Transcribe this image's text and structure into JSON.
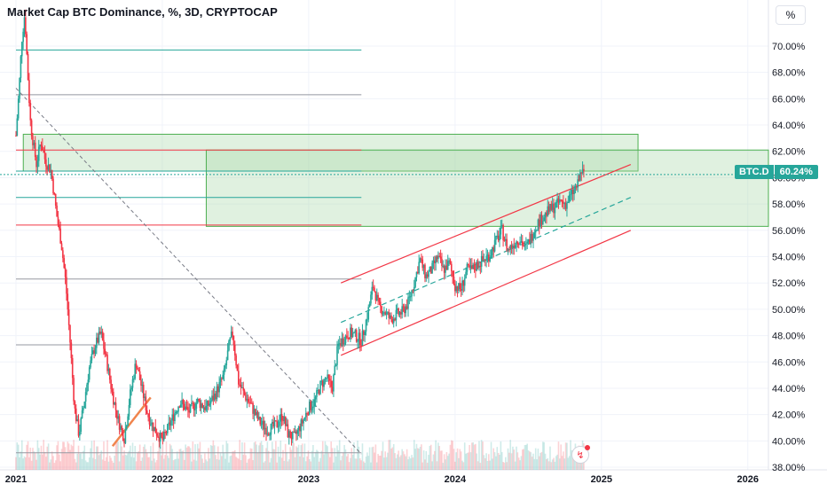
{
  "header": {
    "title": "Market Cap BTC Dominance, %, 3D, CRYPTOCAP",
    "unit_button": "%"
  },
  "price_tag": {
    "symbol": "BTC.D",
    "value": "60.24%"
  },
  "colors": {
    "up": "#26a69a",
    "down": "#f23645",
    "zone_fill": "#a5d6a7",
    "axis_text": "#131722",
    "grid": "#f0f3fa"
  },
  "chart_data": {
    "type": "candlestick",
    "x_tick_labels": [
      "2021",
      "2022",
      "2023",
      "2024",
      "2025",
      "2026"
    ],
    "x_tick_years": [
      2021,
      2022,
      2023,
      2024,
      2025,
      2026
    ],
    "xlim_years": [
      2021.0,
      2026.25
    ],
    "y_tick_labels": [
      "38.00%",
      "40.00%",
      "42.00%",
      "44.00%",
      "46.00%",
      "48.00%",
      "50.00%",
      "52.00%",
      "54.00%",
      "56.00%",
      "58.00%",
      "60.00%",
      "62.00%",
      "64.00%",
      "66.00%",
      "68.00%",
      "70.00%"
    ],
    "y_ticks": [
      38,
      40,
      42,
      44,
      46,
      48,
      50,
      52,
      54,
      56,
      58,
      60,
      62,
      64,
      66,
      68,
      70
    ],
    "ylim": [
      37.8,
      73.5
    ],
    "last_value": 60.24,
    "price_path": [
      [
        2021.0,
        63.2
      ],
      [
        2021.02,
        66.5
      ],
      [
        2021.04,
        70.5
      ],
      [
        2021.06,
        72.5
      ],
      [
        2021.08,
        68.0
      ],
      [
        2021.1,
        64.0
      ],
      [
        2021.12,
        62.5
      ],
      [
        2021.14,
        61.0
      ],
      [
        2021.17,
        62.8
      ],
      [
        2021.2,
        61.3
      ],
      [
        2021.24,
        60.5
      ],
      [
        2021.28,
        57.0
      ],
      [
        2021.31,
        55.0
      ],
      [
        2021.34,
        52.0
      ],
      [
        2021.37,
        47.5
      ],
      [
        2021.4,
        42.5
      ],
      [
        2021.43,
        40.5
      ],
      [
        2021.46,
        42.5
      ],
      [
        2021.5,
        45.5
      ],
      [
        2021.54,
        47.2
      ],
      [
        2021.58,
        48.2
      ],
      [
        2021.62,
        46.0
      ],
      [
        2021.66,
        43.5
      ],
      [
        2021.7,
        41.5
      ],
      [
        2021.74,
        40.2
      ],
      [
        2021.78,
        43.5
      ],
      [
        2021.82,
        46.0
      ],
      [
        2021.86,
        44.0
      ],
      [
        2021.9,
        42.0
      ],
      [
        2021.94,
        41.0
      ],
      [
        2022.0,
        40.0
      ],
      [
        2022.06,
        41.5
      ],
      [
        2022.12,
        43.0
      ],
      [
        2022.18,
        42.2
      ],
      [
        2022.24,
        43.0
      ],
      [
        2022.3,
        42.5
      ],
      [
        2022.36,
        43.5
      ],
      [
        2022.42,
        45.0
      ],
      [
        2022.46,
        47.5
      ],
      [
        2022.48,
        48.2
      ],
      [
        2022.52,
        44.5
      ],
      [
        2022.56,
        43.5
      ],
      [
        2022.6,
        42.8
      ],
      [
        2022.66,
        41.5
      ],
      [
        2022.72,
        40.8
      ],
      [
        2022.78,
        41.2
      ],
      [
        2022.82,
        42.0
      ],
      [
        2022.86,
        40.5
      ],
      [
        2022.9,
        40.2
      ],
      [
        2022.96,
        41.5
      ],
      [
        2023.0,
        42.5
      ],
      [
        2023.04,
        43.0
      ],
      [
        2023.08,
        44.2
      ],
      [
        2023.12,
        44.8
      ],
      [
        2023.16,
        44.0
      ],
      [
        2023.2,
        47.2
      ],
      [
        2023.24,
        47.8
      ],
      [
        2023.28,
        48.2
      ],
      [
        2023.32,
        48.0
      ],
      [
        2023.36,
        47.6
      ],
      [
        2023.4,
        49.5
      ],
      [
        2023.44,
        51.8
      ],
      [
        2023.48,
        50.2
      ],
      [
        2023.52,
        49.8
      ],
      [
        2023.56,
        49.2
      ],
      [
        2023.6,
        49.6
      ],
      [
        2023.64,
        49.8
      ],
      [
        2023.68,
        50.5
      ],
      [
        2023.72,
        52.0
      ],
      [
        2023.76,
        53.8
      ],
      [
        2023.8,
        52.5
      ],
      [
        2023.84,
        53.0
      ],
      [
        2023.88,
        54.0
      ],
      [
        2023.92,
        53.0
      ],
      [
        2023.96,
        53.5
      ],
      [
        2024.0,
        51.8
      ],
      [
        2024.04,
        51.5
      ],
      [
        2024.08,
        53.0
      ],
      [
        2024.12,
        53.0
      ],
      [
        2024.16,
        53.5
      ],
      [
        2024.2,
        53.8
      ],
      [
        2024.24,
        54.2
      ],
      [
        2024.28,
        55.2
      ],
      [
        2024.32,
        56.0
      ],
      [
        2024.36,
        54.5
      ],
      [
        2024.4,
        55.0
      ],
      [
        2024.44,
        55.4
      ],
      [
        2024.48,
        54.6
      ],
      [
        2024.52,
        55.5
      ],
      [
        2024.56,
        56.5
      ],
      [
        2024.6,
        57.0
      ],
      [
        2024.64,
        57.5
      ],
      [
        2024.68,
        57.8
      ],
      [
        2024.72,
        58.2
      ],
      [
        2024.76,
        58.0
      ],
      [
        2024.8,
        58.8
      ],
      [
        2024.84,
        59.5
      ],
      [
        2024.86,
        60.5
      ],
      [
        2024.88,
        60.24
      ]
    ],
    "channel_lines": [
      {
        "style": "solid",
        "color": "#f23645",
        "from": [
          2023.22,
          52.0
        ],
        "to": [
          2025.2,
          61.0
        ]
      },
      {
        "style": "dashed",
        "color": "#26a69a",
        "from": [
          2023.22,
          49.0
        ],
        "to": [
          2025.2,
          58.5
        ]
      },
      {
        "style": "solid",
        "color": "#f23645",
        "from": [
          2023.22,
          46.5
        ],
        "to": [
          2025.2,
          56.0
        ]
      },
      {
        "style": "solid",
        "color": "#f0844c",
        "from": [
          2021.66,
          39.6
        ],
        "to": [
          2021.92,
          43.3
        ]
      }
    ],
    "trendline": {
      "style": "dashed",
      "color": "#787b86",
      "from": [
        2021.0,
        66.8
      ],
      "to": [
        2023.36,
        39.0
      ]
    },
    "horizontal_levels": [
      {
        "value": 69.7,
        "color": "#26a69a",
        "x_start": 2021.0,
        "x_end": 2023.36
      },
      {
        "value": 66.3,
        "color": "#9598a1",
        "x_start": 2021.0,
        "x_end": 2023.36
      },
      {
        "value": 62.1,
        "color": "#f23645",
        "x_start": 2021.0,
        "x_end": 2023.36
      },
      {
        "value": 60.5,
        "color": "#26a69a",
        "x_start": 2021.0,
        "x_end": 2023.36
      },
      {
        "value": 58.5,
        "color": "#26a69a",
        "x_start": 2021.0,
        "x_end": 2023.36
      },
      {
        "value": 56.4,
        "color": "#f23645",
        "x_start": 2021.0,
        "x_end": 2023.36
      },
      {
        "value": 52.3,
        "color": "#9598a1",
        "x_start": 2021.0,
        "x_end": 2023.36
      },
      {
        "value": 47.3,
        "color": "#9598a1",
        "x_start": 2021.0,
        "x_end": 2023.36
      },
      {
        "value": 39.1,
        "color": "#9598a1",
        "x_start": 2021.0,
        "x_end": 2023.36
      }
    ],
    "zones": [
      {
        "y_low": 60.5,
        "y_high": 63.3,
        "x_start": 2021.05,
        "x_end": 2025.25
      },
      {
        "y_low": 56.3,
        "y_high": 62.1,
        "x_start": 2022.3,
        "x_end": 2026.25
      }
    ],
    "volume_profile_max_pct": 0.35
  }
}
